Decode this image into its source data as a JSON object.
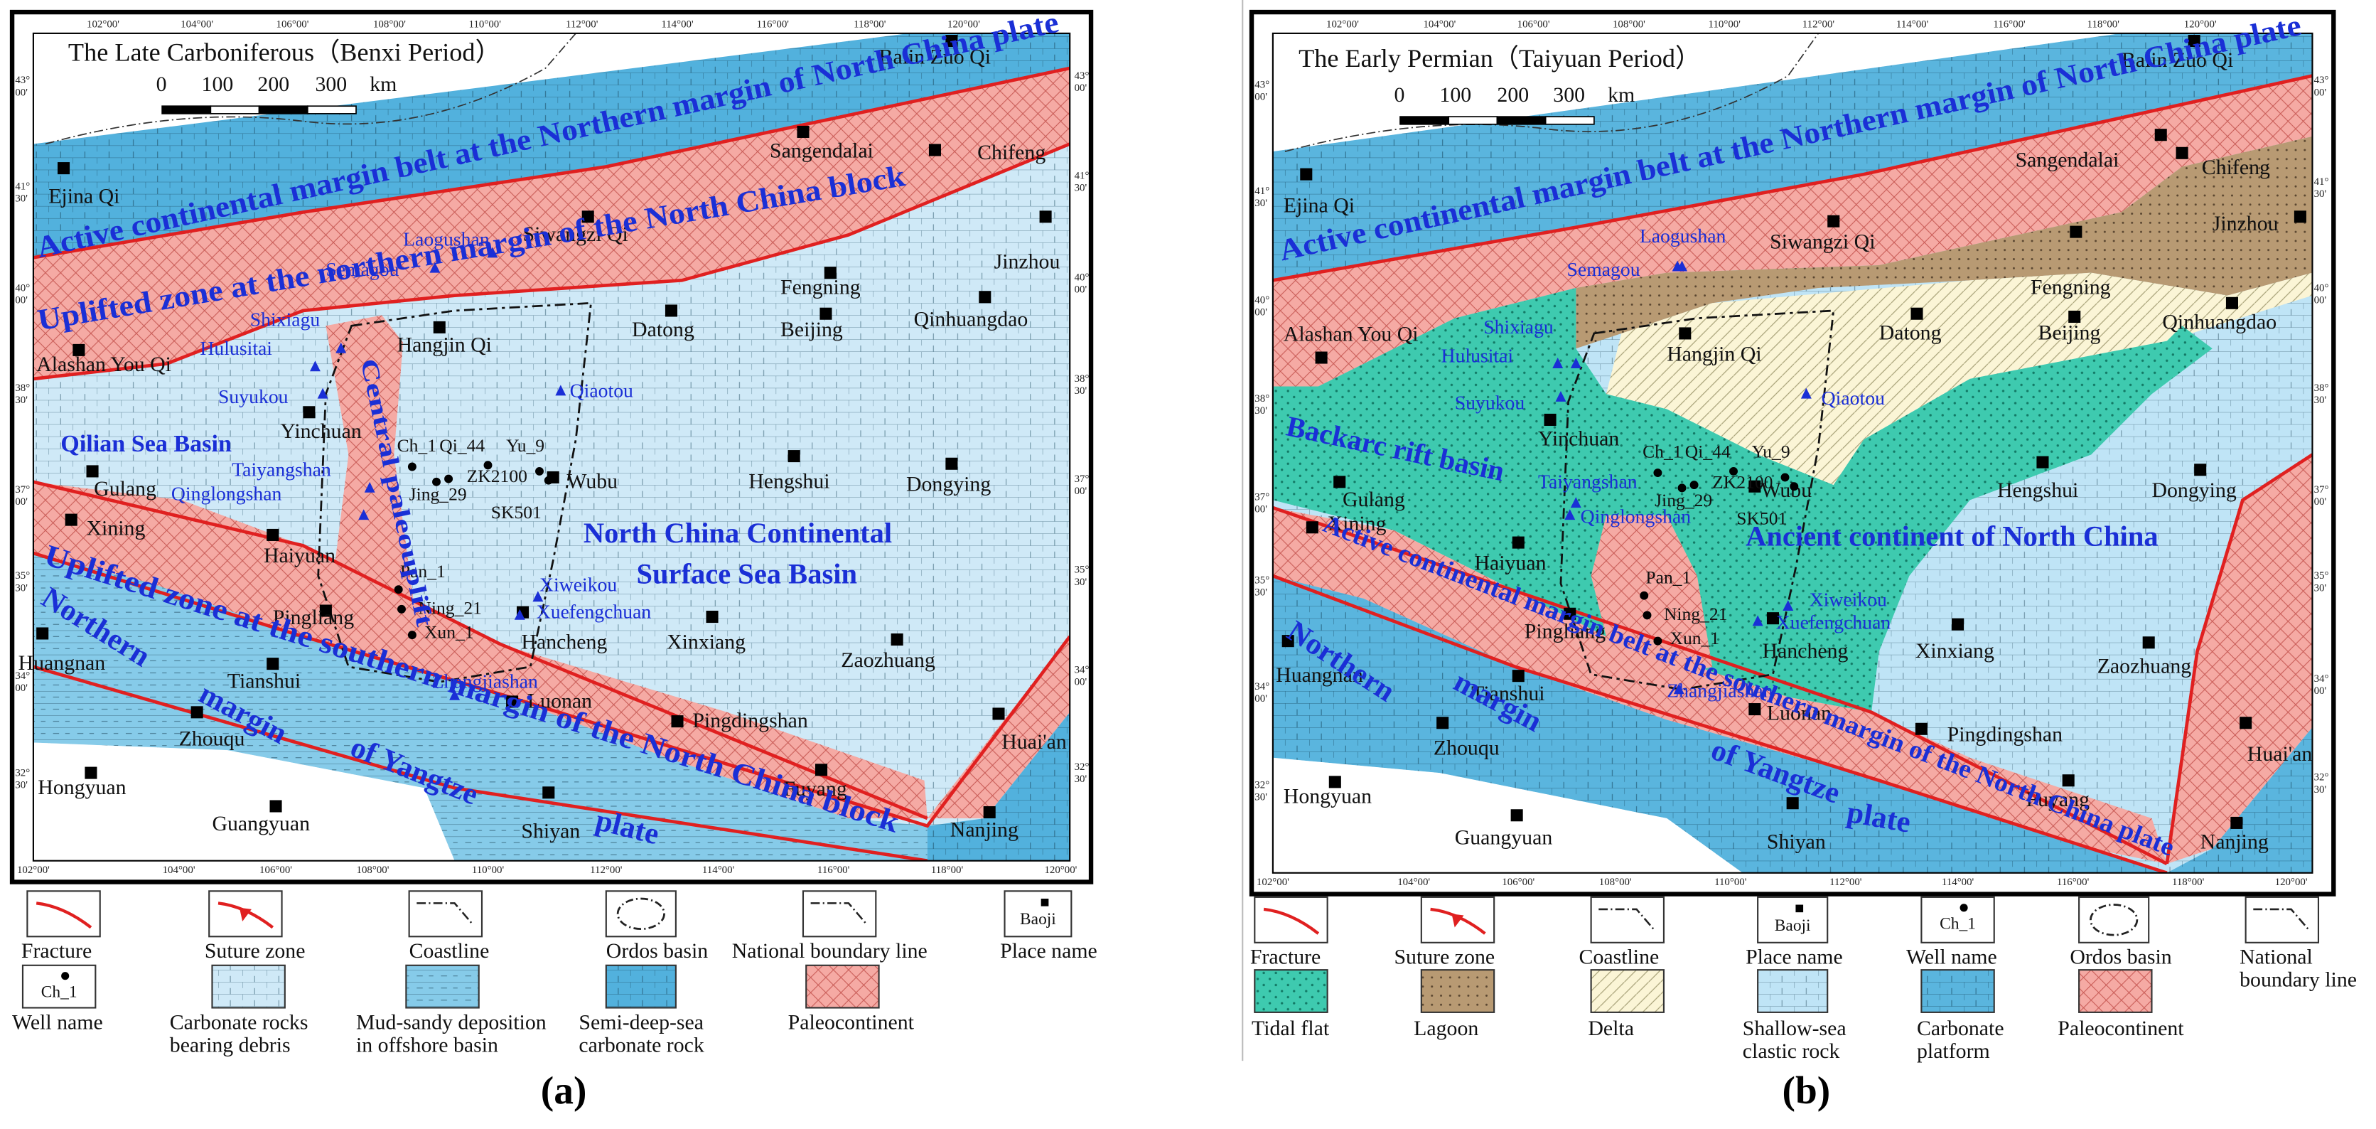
{
  "panels": [
    {
      "title": "The Late Carboniferous（Benxi Period）",
      "scale_labels": [
        "0",
        "100",
        "200",
        "300",
        "km"
      ],
      "longitudes": [
        "102°00'",
        "104°00'",
        "106°00'",
        "108°00'",
        "110°00'",
        "112°00'",
        "114°00'",
        "116°00'",
        "118°00'",
        "120°00'"
      ],
      "latitudes": [
        "43°00'",
        "41°30'",
        "40°00'",
        "38°30'",
        "37°00'",
        "35°30'",
        "34°00'",
        "32°30'"
      ],
      "places": [
        "Balin Zuo Qi",
        "Sangendalai",
        "Chifeng",
        "Jinzhou",
        "Ejina Qi",
        "Siwangzi Qi",
        "Fengning",
        "Alashan You Qi",
        "Hangjin Qi",
        "Datong",
        "Beijing",
        "Qinhuangdao",
        "Yinchuan",
        "Wubu",
        "Hengshui",
        "Dongying",
        "Gulang",
        "Xining",
        "Haiyuan",
        "Pingliang",
        "Hancheng",
        "Xinxiang",
        "Zaozhuang",
        "Huangnan",
        "Tianshui",
        "Luonan",
        "Pingdingshan",
        "Huai'an",
        "Zhouqu",
        "Hongyuan",
        "Fuyang",
        "Shiyan",
        "Nanjing",
        "Guangyuan"
      ],
      "wells": [
        "Ch_1",
        "Qi_44",
        "Yu_9",
        "ZK2100",
        "Jing_29",
        "SK501",
        "Pan_1",
        "Ning_21",
        "Xun_1"
      ],
      "sites": [
        "Laogushan",
        "Semagou",
        "Shixiagu",
        "Hulusitai",
        "Suyukou",
        "Qiaotou",
        "Taiyangshan",
        "Qinglongshan",
        "Xiweikou",
        "Xuefengchuan",
        "Zhangjiashan"
      ],
      "regions": [
        {
          "lines": [
            "Active continental margin belt at the Northern margin of North China plate"
          ]
        },
        {
          "lines": [
            "Uplifted zone at the northern margin of the North China block"
          ]
        },
        {
          "lines": [
            "Qilian Sea Basin"
          ]
        },
        {
          "lines": [
            "Central paleouplift"
          ]
        },
        {
          "lines": [
            "North China Continental",
            "Surface Sea Basin"
          ]
        },
        {
          "lines": [
            "Uplifted zone at the southern margin of the North China block"
          ]
        },
        {
          "lines": [
            "Northern",
            "margin",
            "of Yangtze",
            "plate"
          ]
        }
      ],
      "legend": [
        {
          "label": [
            "Fracture"
          ]
        },
        {
          "label": [
            "Suture zone"
          ]
        },
        {
          "label": [
            "Coastline"
          ]
        },
        {
          "label": [
            "Ordos basin"
          ]
        },
        {
          "label": [
            "National boundary line"
          ]
        },
        {
          "label": [
            "Place name"
          ],
          "icon_text": "Baoji"
        },
        {
          "label": [
            "Well name"
          ],
          "icon_text": "Ch_1"
        },
        {
          "label": [
            "Carbonate rocks",
            "bearing debris"
          ]
        },
        {
          "label": [
            "Mud-sandy deposition",
            "in offshore basin"
          ]
        },
        {
          "label": [
            "Semi-deep-sea",
            "carbonate rock"
          ]
        },
        {
          "label": [
            "Paleocontinent"
          ]
        }
      ],
      "caption": "(a)"
    },
    {
      "title": "The Early Permian（Taiyuan Period）",
      "scale_labels": [
        "0",
        "100",
        "200",
        "300",
        "km"
      ],
      "longitudes": [
        "102°00'",
        "104°00'",
        "106°00'",
        "108°00'",
        "110°00'",
        "112°00'",
        "114°00'",
        "116°00'",
        "118°00'",
        "120°00'"
      ],
      "latitudes": [
        "43°00'",
        "41°30'",
        "40°00'",
        "38°30'",
        "37°00'",
        "35°30'",
        "34°00'",
        "32°30'"
      ],
      "places": [
        "Balin Zuo Qi",
        "Sangendalai",
        "Chifeng",
        "Jinzhou",
        "Ejina Qi",
        "Siwangzi Qi",
        "Fengning",
        "Alashan You Qi",
        "Hangjin Qi",
        "Datong",
        "Beijing",
        "Qinhuangdao",
        "Yinchuan",
        "Wubu",
        "Hengshui",
        "Dongying",
        "Gulang",
        "Xining",
        "Haiyuan",
        "Pingliang",
        "Hancheng",
        "Xinxiang",
        "Zaozhuang",
        "Huangnan",
        "Tianshui",
        "Luonan",
        "Pingdingshan",
        "Huai'an",
        "Zhouqu",
        "Hongyuan",
        "Fuyang",
        "Shiyan",
        "Nanjing",
        "Guangyuan"
      ],
      "wells": [
        "Ch_1",
        "Qi_44",
        "Yu_9",
        "ZK2100",
        "Jing_29",
        "SK501",
        "Pan_1",
        "Ning_21",
        "Xun_1"
      ],
      "sites": [
        "Laogushan",
        "Semagou",
        "Shixiagu",
        "Hulusitai",
        "Suyukou",
        "Qiaotou",
        "Taiyangshan",
        "Qinglongshan",
        "Xiweikou",
        "Xuefengchuan",
        "Zhangjiashan"
      ],
      "regions": [
        {
          "lines": [
            "Active continental margin belt at the Northern margin of North China plate"
          ]
        },
        {
          "lines": [
            "Backarc rift basin"
          ]
        },
        {
          "lines": [
            "Ancient continent of North China"
          ]
        },
        {
          "lines": [
            "Active continental margin belt at the southern margin of the North China plate"
          ]
        },
        {
          "lines": [
            "Northern",
            "margin",
            "of Yangtze",
            "plate"
          ]
        }
      ],
      "legend": [
        {
          "label": [
            "Fracture"
          ]
        },
        {
          "label": [
            "Suture zone"
          ]
        },
        {
          "label": [
            "Coastline"
          ]
        },
        {
          "label": [
            "Place name"
          ],
          "icon_text": "Baoji"
        },
        {
          "label": [
            "Well name"
          ],
          "icon_text": "Ch_1"
        },
        {
          "label": [
            "Ordos basin"
          ]
        },
        {
          "label": [
            "National",
            "boundary line"
          ]
        },
        {
          "label": [
            "Tidal flat"
          ]
        },
        {
          "label": [
            "Lagoon"
          ]
        },
        {
          "label": [
            "Delta"
          ]
        },
        {
          "label": [
            "Shallow-sea",
            "clastic rock"
          ]
        },
        {
          "label": [
            "Carbonate",
            "platform"
          ]
        },
        {
          "label": [
            "Paleocontinent"
          ]
        }
      ],
      "caption": "(b)"
    }
  ]
}
